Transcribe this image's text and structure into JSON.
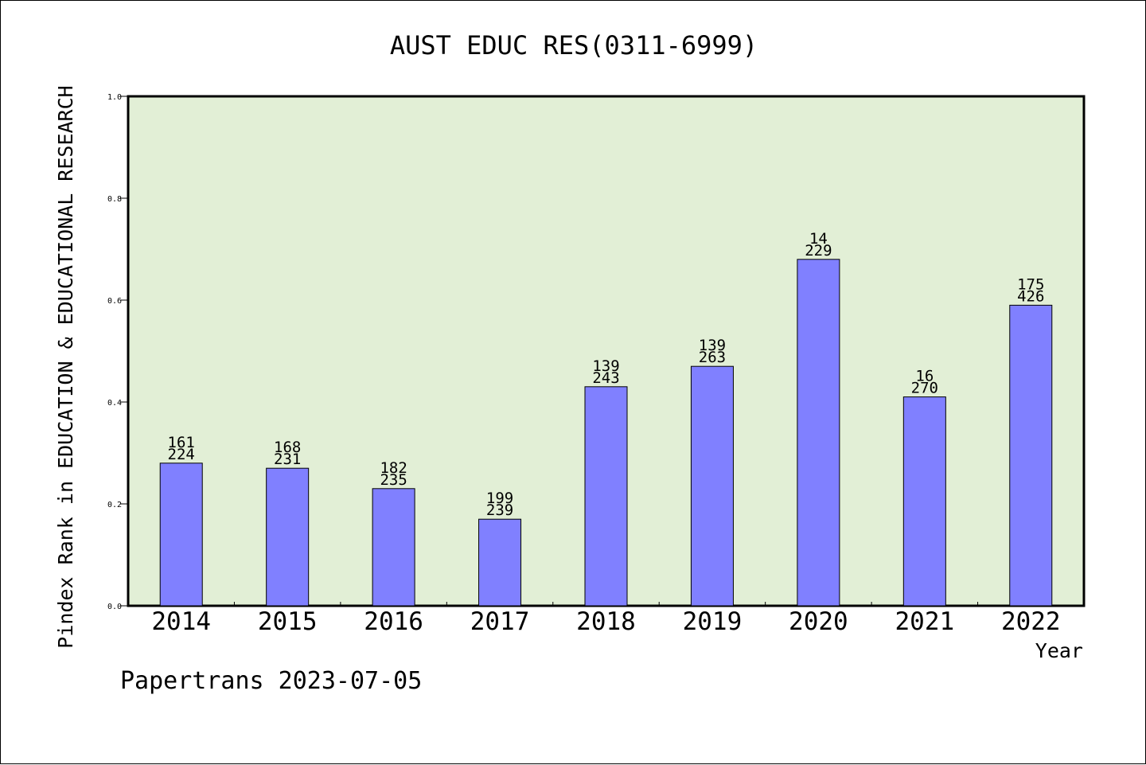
{
  "chart_data": {
    "type": "bar",
    "title": "AUST EDUC RES(0311-6999)",
    "ylabel": "Pindex Rank in EDUCATION & EDUCATIONAL RESEARCH",
    "xlabel": "Year",
    "ylim": [
      0,
      1.0
    ],
    "yticks": [
      "0.0",
      "0.2",
      "0.4",
      "0.6",
      "0.8",
      "1.0"
    ],
    "categories": [
      "2014",
      "2015",
      "2016",
      "2017",
      "2018",
      "2019",
      "2020",
      "2021",
      "2022"
    ],
    "values": [
      0.28,
      0.27,
      0.23,
      0.17,
      0.43,
      0.47,
      0.68,
      0.41,
      0.59
    ],
    "labels_top": [
      "161",
      "168",
      "182",
      "199",
      "139",
      "139",
      "14",
      "16",
      "175"
    ],
    "labels_bottom": [
      "224",
      "231",
      "235",
      "239",
      "243",
      "263",
      "229",
      "270",
      "426"
    ],
    "grid": false,
    "colors": {
      "bar": "#8080ff",
      "plot_bg": "#e2efd6",
      "axis": "#000000"
    }
  },
  "footer": "Papertrans 2023-07-05"
}
